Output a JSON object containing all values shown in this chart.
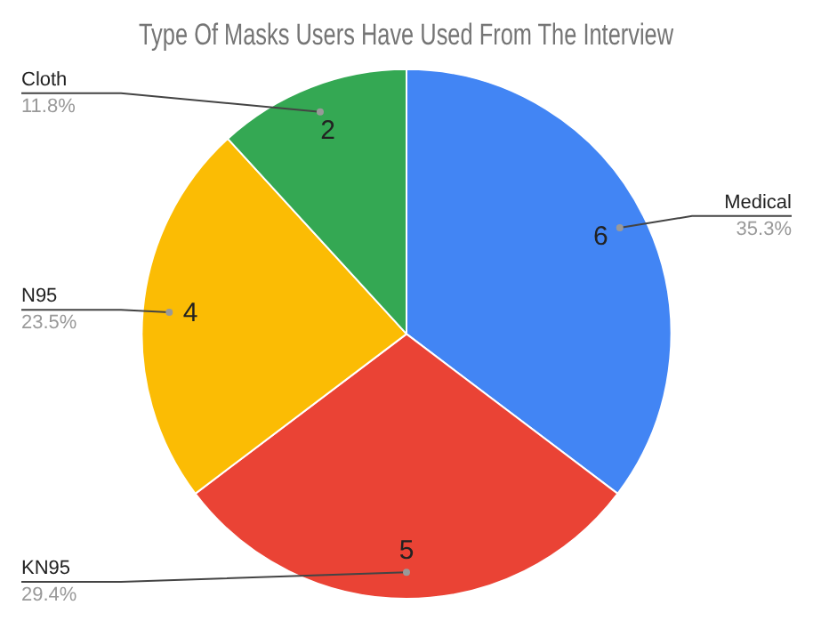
{
  "chart_data": {
    "type": "pie",
    "title": "Type Of Masks Users Have Used From The Interview",
    "categories": [
      "Medical",
      "KN95",
      "N95",
      "Cloth"
    ],
    "values": [
      35.3,
      29.4,
      23.5,
      11.8
    ],
    "colors": [
      "#4285f4",
      "#ea4335",
      "#fbbc04",
      "#34a853"
    ],
    "value_labels": [
      "35.3%",
      "29.4%",
      "23.5%",
      "11.8%"
    ],
    "annotations": [
      {
        "text": "6",
        "x": "Medical"
      },
      {
        "text": "5",
        "x": "KN95"
      },
      {
        "text": "4",
        "x": "N95"
      },
      {
        "text": "2",
        "x": "Cloth"
      }
    ],
    "legend": false
  }
}
